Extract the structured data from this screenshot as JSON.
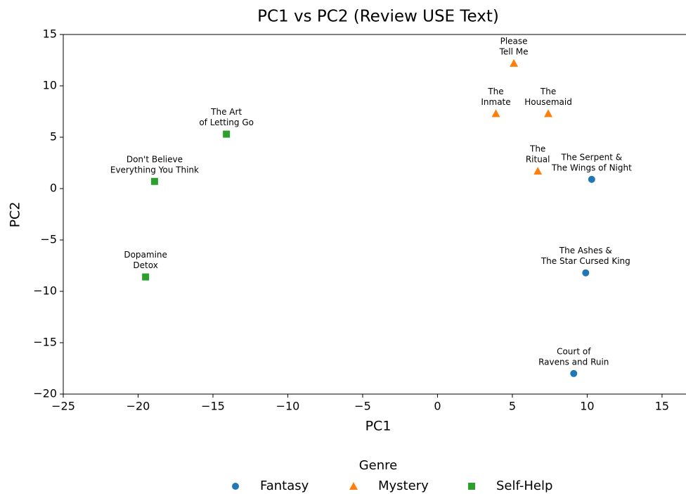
{
  "chart_data": {
    "type": "scatter",
    "title": "PC1 vs PC2 (Review USE Text)",
    "xlabel": "PC1",
    "ylabel": "PC2",
    "xlim": [
      -25,
      16.6
    ],
    "ylim": [
      -20,
      15
    ],
    "xticks": [
      {
        "value": -25,
        "label": "−25"
      },
      {
        "value": -20,
        "label": "−20"
      },
      {
        "value": -15,
        "label": "−15"
      },
      {
        "value": -10,
        "label": "−10"
      },
      {
        "value": -5,
        "label": "−5"
      },
      0,
      5,
      10,
      15
    ],
    "yticks": [
      {
        "value": -20,
        "label": "−20"
      },
      {
        "value": -15,
        "label": "−15"
      },
      {
        "value": -10,
        "label": "−10"
      },
      {
        "value": -5,
        "label": "−5"
      },
      0,
      5,
      10,
      15
    ],
    "legend_title": "Genre",
    "legend_position": "bottom",
    "series": [
      {
        "name": "Fantasy",
        "color": "#1f77b4",
        "marker": "circle",
        "x": [
          10.3,
          9.9,
          9.1
        ],
        "y": [
          0.9,
          -8.2,
          -18.0
        ],
        "labels": [
          [
            "The Serpent &",
            "The Wings of Night"
          ],
          [
            "The Ashes &",
            "The Star Cursed King"
          ],
          [
            "Court of",
            "Ravens and Ruin"
          ]
        ]
      },
      {
        "name": "Mystery",
        "color": "#ff7f0e",
        "marker": "triangle",
        "x": [
          5.1,
          3.9,
          7.4,
          6.7
        ],
        "y": [
          12.2,
          7.3,
          7.3,
          1.7
        ],
        "labels": [
          [
            "Please",
            "Tell Me"
          ],
          [
            "The",
            "Inmate"
          ],
          [
            "The",
            "Housemaid"
          ],
          [
            "The",
            "Ritual"
          ]
        ]
      },
      {
        "name": "Self-Help",
        "color": "#2ca02c",
        "marker": "square",
        "x": [
          -14.1,
          -18.9,
          -19.5
        ],
        "y": [
          5.3,
          0.7,
          -8.6
        ],
        "labels": [
          [
            "The Art",
            "of Letting Go"
          ],
          [
            "Don't Believe",
            "Everything You Think"
          ],
          [
            "Dopamine",
            "Detox"
          ]
        ]
      }
    ]
  }
}
